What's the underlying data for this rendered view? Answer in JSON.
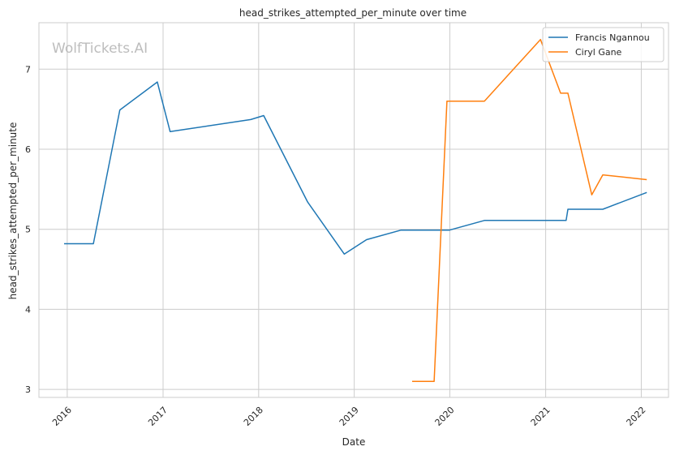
{
  "chart_data": {
    "type": "line",
    "title": "head_strikes_attempted_per_minute over time",
    "xlabel": "Date",
    "ylabel": "head_strikes_attempted_per_minute",
    "watermark": "WolfTickets.AI",
    "x_ticks": [
      "2016",
      "2017",
      "2018",
      "2019",
      "2020",
      "2021",
      "2022"
    ],
    "y_ticks": [
      3,
      4,
      5,
      6,
      7
    ],
    "xlim": [
      "2015-09-15",
      "2022-04-15"
    ],
    "ylim": [
      2.9,
      7.58
    ],
    "grid": true,
    "legend_position": "top-right",
    "series": [
      {
        "name": "Francis Ngannou",
        "color": "#1f77b4",
        "points": [
          [
            "2015-12-20",
            4.82
          ],
          [
            "2016-04-10",
            4.82
          ],
          [
            "2016-07-20",
            6.49
          ],
          [
            "2016-12-10",
            6.84
          ],
          [
            "2017-01-28",
            6.22
          ],
          [
            "2017-12-02",
            6.37
          ],
          [
            "2018-01-20",
            6.42
          ],
          [
            "2018-07-07",
            5.34
          ],
          [
            "2018-11-24",
            4.69
          ],
          [
            "2019-02-17",
            4.87
          ],
          [
            "2019-06-29",
            4.99
          ],
          [
            "2019-12-31",
            4.99
          ],
          [
            "2020-05-12",
            5.11
          ],
          [
            "2021-03-20",
            5.11
          ],
          [
            "2021-03-27",
            5.25
          ],
          [
            "2021-08-07",
            5.25
          ],
          [
            "2022-01-22",
            5.46
          ]
        ]
      },
      {
        "name": "Ciryl Gane",
        "color": "#ff7f0e",
        "points": [
          [
            "2019-08-10",
            3.1
          ],
          [
            "2019-11-02",
            3.1
          ],
          [
            "2019-12-21",
            6.6
          ],
          [
            "2020-05-12",
            6.6
          ],
          [
            "2020-12-12",
            7.37
          ],
          [
            "2021-02-27",
            6.7
          ],
          [
            "2021-03-27",
            6.7
          ],
          [
            "2021-06-26",
            5.43
          ],
          [
            "2021-08-07",
            5.68
          ],
          [
            "2022-01-22",
            5.62
          ]
        ]
      }
    ]
  }
}
